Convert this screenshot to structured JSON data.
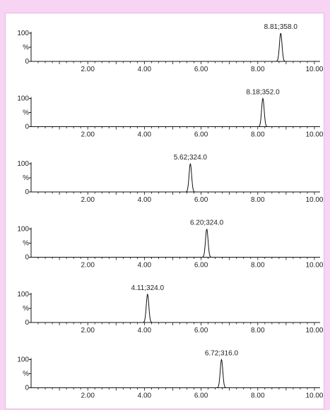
{
  "chart_data": [
    {
      "type": "line",
      "peak_label": "8.81;358.0",
      "peak_rt": 8.81,
      "xlim": [
        0,
        10.2
      ],
      "ylim": [
        0,
        100
      ],
      "yticks": [
        "100",
        "%",
        "0"
      ],
      "xticks": [
        "2.00",
        "4.00",
        "6.00",
        "8.00",
        "10.00"
      ]
    },
    {
      "type": "line",
      "peak_label": "8.18;352.0",
      "peak_rt": 8.18,
      "xlim": [
        0,
        10.2
      ],
      "ylim": [
        0,
        100
      ],
      "yticks": [
        "100",
        "%",
        "0"
      ],
      "xticks": [
        "2.00",
        "4.00",
        "6.00",
        "8.00",
        "10.00"
      ]
    },
    {
      "type": "line",
      "peak_label": "5.62;324.0",
      "peak_rt": 5.62,
      "xlim": [
        0,
        10.2
      ],
      "ylim": [
        0,
        100
      ],
      "yticks": [
        "100",
        "%",
        "0"
      ],
      "xticks": [
        "2.00",
        "4.00",
        "6.00",
        "8.00",
        "10.00"
      ]
    },
    {
      "type": "line",
      "peak_label": "6.20;324.0",
      "peak_rt": 6.2,
      "xlim": [
        0,
        10.2
      ],
      "ylim": [
        0,
        100
      ],
      "yticks": [
        "100",
        "%",
        "0"
      ],
      "xticks": [
        "2.00",
        "4.00",
        "6.00",
        "8.00",
        "10.00"
      ]
    },
    {
      "type": "line",
      "peak_label": "4.11;324.0",
      "peak_rt": 4.11,
      "xlim": [
        0,
        10.2
      ],
      "ylim": [
        0,
        100
      ],
      "yticks": [
        "100",
        "%",
        "0"
      ],
      "xticks": [
        "2.00",
        "4.00",
        "6.00",
        "8.00",
        "10.00"
      ]
    },
    {
      "type": "line",
      "peak_label": "6.72;316.0",
      "peak_rt": 6.72,
      "xlim": [
        0,
        10.2
      ],
      "ylim": [
        0,
        100
      ],
      "yticks": [
        "100",
        "%",
        "0"
      ],
      "xticks": [
        "2.00",
        "4.00",
        "6.00",
        "8.00",
        "10.00"
      ]
    }
  ],
  "colors": {
    "background": "#f7d4f3",
    "trace": "#111111"
  }
}
